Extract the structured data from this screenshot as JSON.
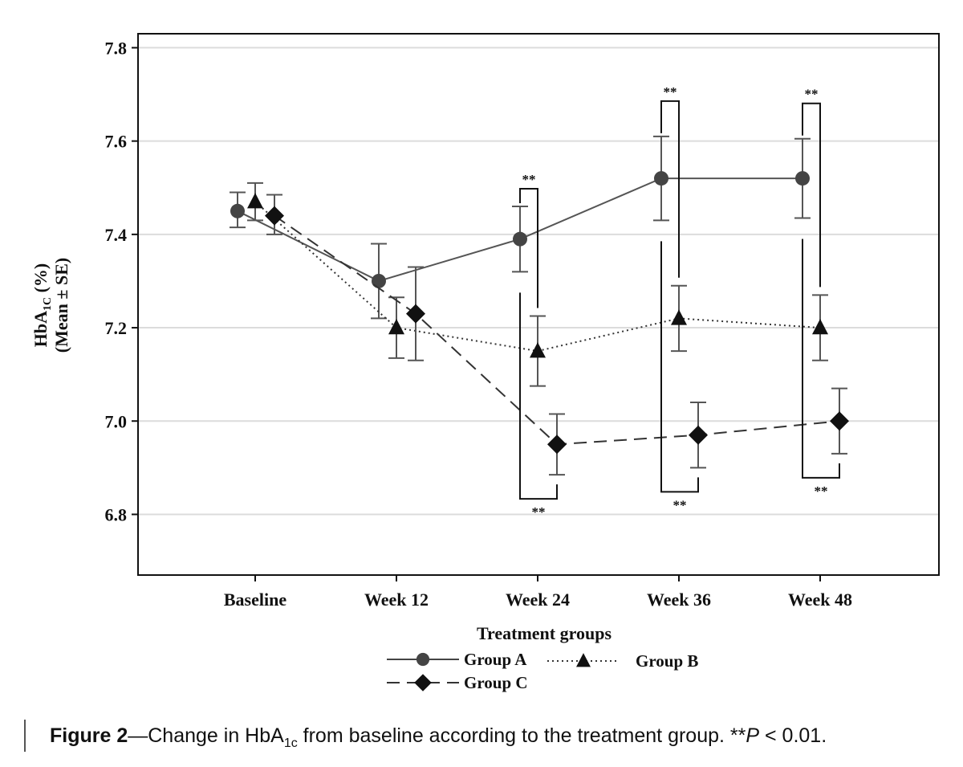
{
  "chart_data": {
    "type": "line",
    "xlabel": "Treatment groups",
    "ylabel_line1": "HbA",
    "ylabel_sub": "1C",
    "ylabel_unit": " (%)",
    "ylabel_line2": "(Mean ± SE)",
    "categories": [
      "Baseline",
      "Week 12",
      "Week 24",
      "Week 36",
      "Week 48"
    ],
    "yticks": [
      "6.8",
      "7.0",
      "7.2",
      "7.4",
      "7.6",
      "7.8"
    ],
    "ylim": [
      6.67,
      7.83
    ],
    "grid": true,
    "legend_position": "bottom",
    "series": [
      {
        "name": "Group A",
        "marker": "circle",
        "line": "solid",
        "color": "#444444",
        "values": [
          7.45,
          7.3,
          7.39,
          7.52,
          7.52
        ],
        "se_low": [
          7.415,
          7.22,
          7.32,
          7.43,
          7.435
        ],
        "se_high": [
          7.49,
          7.38,
          7.46,
          7.61,
          7.605
        ]
      },
      {
        "name": "Group B",
        "marker": "triangle",
        "line": "dotted",
        "color": "#111111",
        "values": [
          7.47,
          7.2,
          7.15,
          7.22,
          7.2
        ],
        "se_low": [
          7.43,
          7.135,
          7.075,
          7.15,
          7.13
        ],
        "se_high": [
          7.51,
          7.265,
          7.225,
          7.29,
          7.27
        ]
      },
      {
        "name": "Group C",
        "marker": "diamond",
        "line": "dashed",
        "color": "#111111",
        "values": [
          7.44,
          7.23,
          6.95,
          6.97,
          7.0
        ],
        "se_low": [
          7.4,
          7.13,
          6.885,
          6.9,
          6.93
        ],
        "se_high": [
          7.485,
          7.33,
          7.015,
          7.04,
          7.07
        ]
      }
    ],
    "significance": [
      {
        "label": "**",
        "category_index": 2,
        "between": [
          "Group A",
          "Group B"
        ],
        "side": "top"
      },
      {
        "label": "**",
        "category_index": 2,
        "between": [
          "Group A",
          "Group C"
        ],
        "side": "bottom"
      },
      {
        "label": "**",
        "category_index": 3,
        "between": [
          "Group A",
          "Group B"
        ],
        "side": "top"
      },
      {
        "label": "**",
        "category_index": 3,
        "between": [
          "Group A",
          "Group C"
        ],
        "side": "bottom"
      },
      {
        "label": "**",
        "category_index": 4,
        "between": [
          "Group A",
          "Group B"
        ],
        "side": "top"
      },
      {
        "label": "**",
        "category_index": 4,
        "between": [
          "Group A",
          "Group C"
        ],
        "side": "bottom"
      }
    ]
  },
  "caption": {
    "figure_label": "Figure 2",
    "text_before": "—Change in HbA",
    "subscript": "1c",
    "text_after": " from baseline according to the treatment group. **",
    "p_italic": "P",
    "p_tail": " < 0.01."
  }
}
